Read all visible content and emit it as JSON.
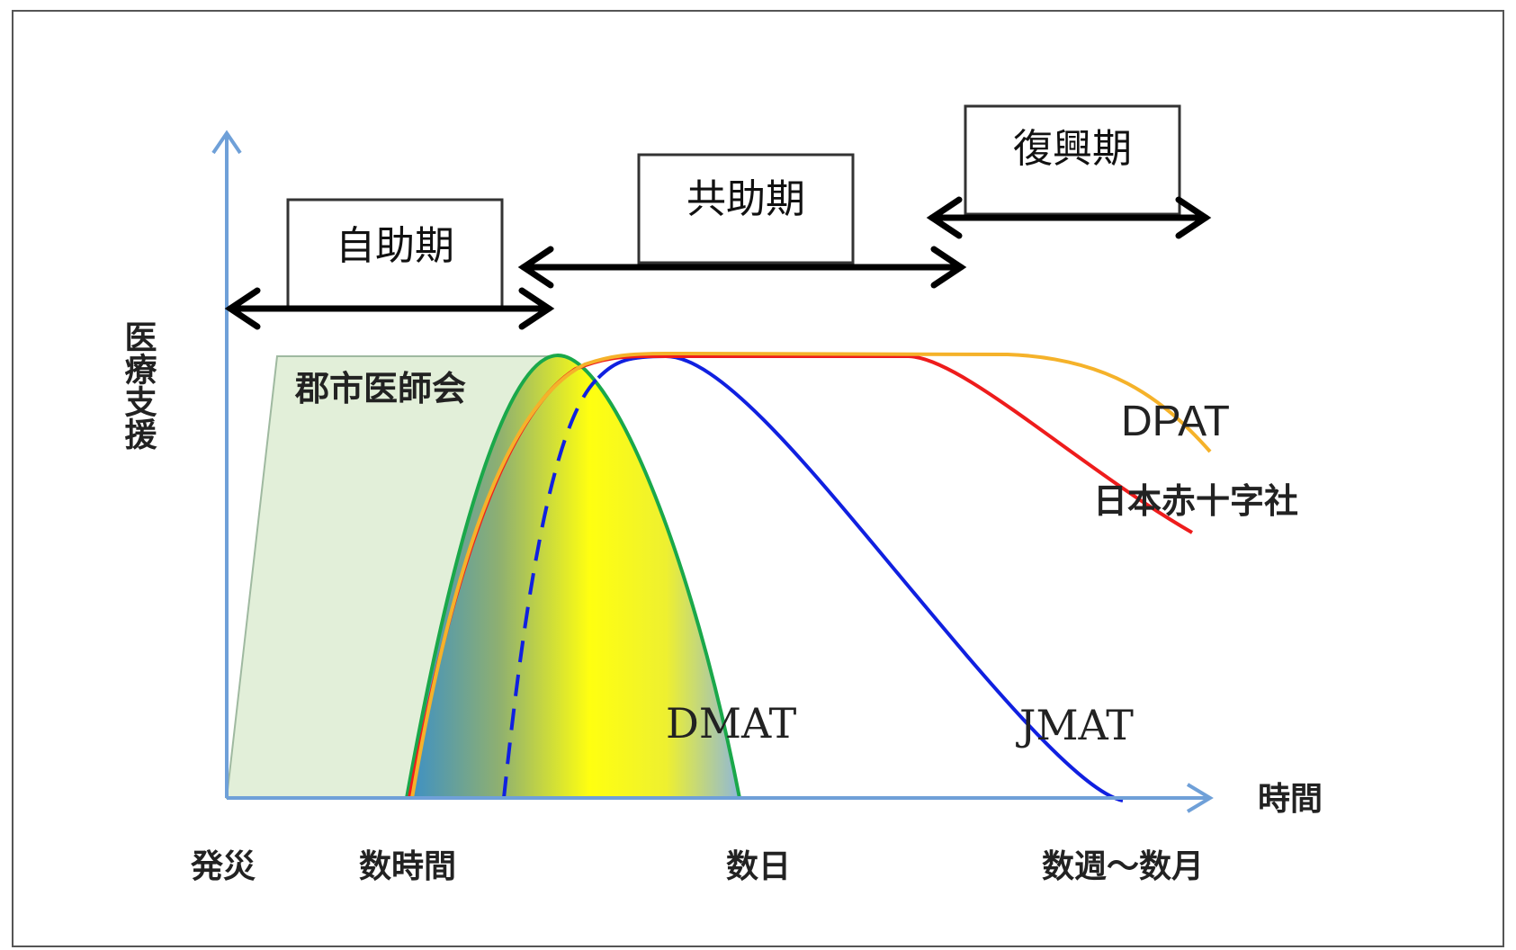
{
  "phases": {
    "self_help": "自助期",
    "mutual_help": "共助期",
    "recovery": "復興期"
  },
  "axes": {
    "y_label": "医療支援",
    "x_label": "時間"
  },
  "time_labels": {
    "disaster": "発災",
    "hours": "数時間",
    "days": "数日",
    "weeks_months": "数週～数月"
  },
  "organizations": {
    "city_medical": "郡市医師会",
    "dmat": "DMAT",
    "jmat": "JMAT",
    "dpat": "DPAT",
    "red_cross": "日本赤十字社"
  },
  "colors": {
    "axis": "#6fa0d8",
    "city_medical_fill": "#e2efd9",
    "dmat_outline": "#1aa84a",
    "jmat_line": "#1020e0",
    "red_cross_line": "#ee1c1c",
    "dpat_line": "#f5b22a",
    "arrow": "#000000"
  }
}
